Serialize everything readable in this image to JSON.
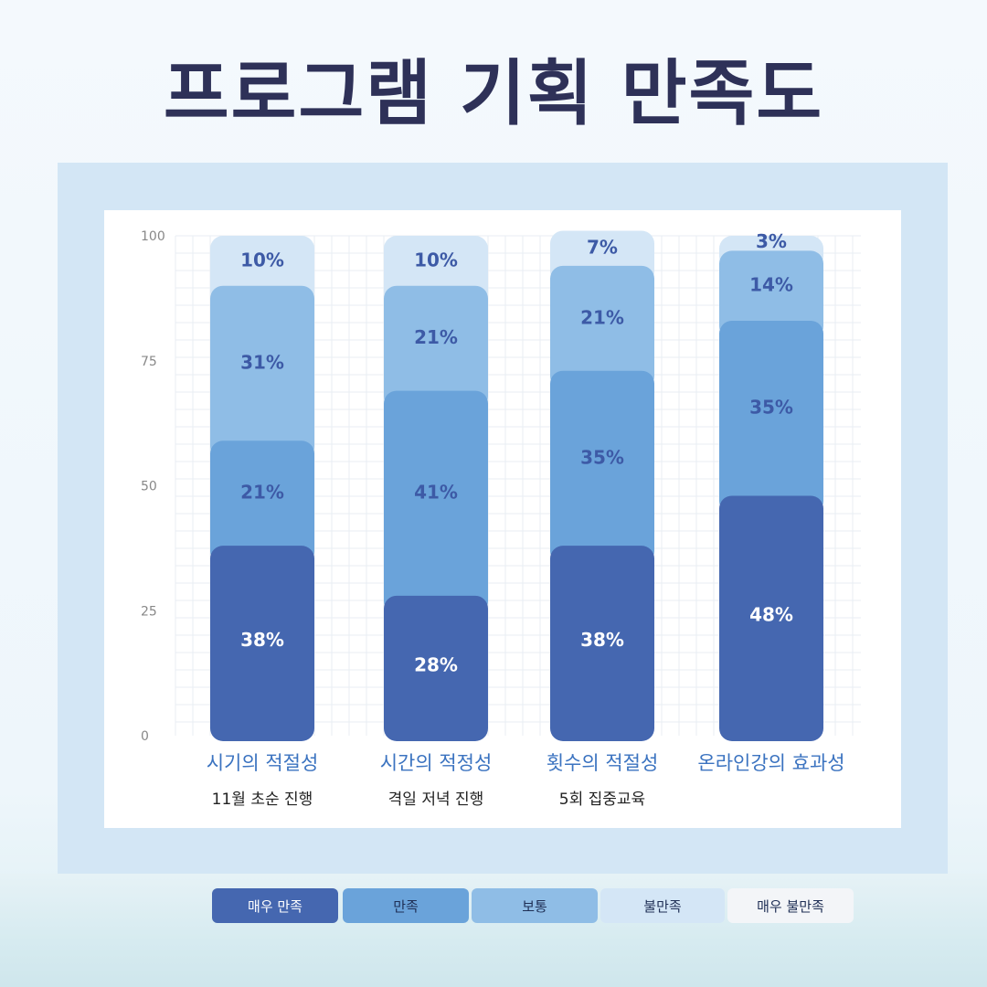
{
  "title": "프로그램 기획 만족도",
  "colors": {
    "very_satisfied": "#4567b0",
    "satisfied": "#6aa3da",
    "normal": "#8fbde6",
    "dissatisfied": "#d4e6f6",
    "very_dissatisfied": "#f3f5f8",
    "title": "#2e3158",
    "category_label": "#3b73c0",
    "axis_text": "#888888"
  },
  "legend": {
    "items": [
      {
        "label": "매우 만족",
        "color": "#4567b0",
        "text_color": "#ffffff"
      },
      {
        "label": "만족",
        "color": "#6aa3da",
        "text_color": "#1f2f55"
      },
      {
        "label": "보통",
        "color": "#8fbde6",
        "text_color": "#1f2f55"
      },
      {
        "label": "불만족",
        "color": "#d4e6f6",
        "text_color": "#1f2f55"
      },
      {
        "label": "매우 불만족",
        "color": "#f3f5f8",
        "text_color": "#1f2f55"
      }
    ]
  },
  "chart_data": {
    "type": "bar",
    "stacked": true,
    "title": "",
    "xlabel": "",
    "ylabel": "",
    "ylim": [
      0,
      100
    ],
    "yticks": [
      0,
      25,
      50,
      75,
      100
    ],
    "grid": true,
    "legend_position": "bottom",
    "categories": [
      "시기의 적절성",
      "시간의 적정성",
      "횟수의 적절성",
      "온라인강의 효과성"
    ],
    "subtitles": [
      "11월 초순 진행",
      "격일 저녁 진행",
      "5회 집중교육",
      ""
    ],
    "series": [
      {
        "name": "매우 만족",
        "values": [
          38,
          28,
          38,
          48
        ],
        "labels": [
          "38%",
          "28%",
          "38%",
          "48%"
        ]
      },
      {
        "name": "만족",
        "values": [
          21,
          41,
          35,
          35
        ],
        "labels": [
          "21%",
          "41%",
          "35%",
          "35%"
        ]
      },
      {
        "name": "보통",
        "values": [
          31,
          21,
          21,
          14
        ],
        "labels": [
          "31%",
          "21%",
          "21%",
          "14%"
        ]
      },
      {
        "name": "불만족",
        "values": [
          10,
          10,
          7,
          3
        ],
        "labels": [
          "10%",
          "10%",
          "7%",
          "3%"
        ]
      }
    ]
  }
}
